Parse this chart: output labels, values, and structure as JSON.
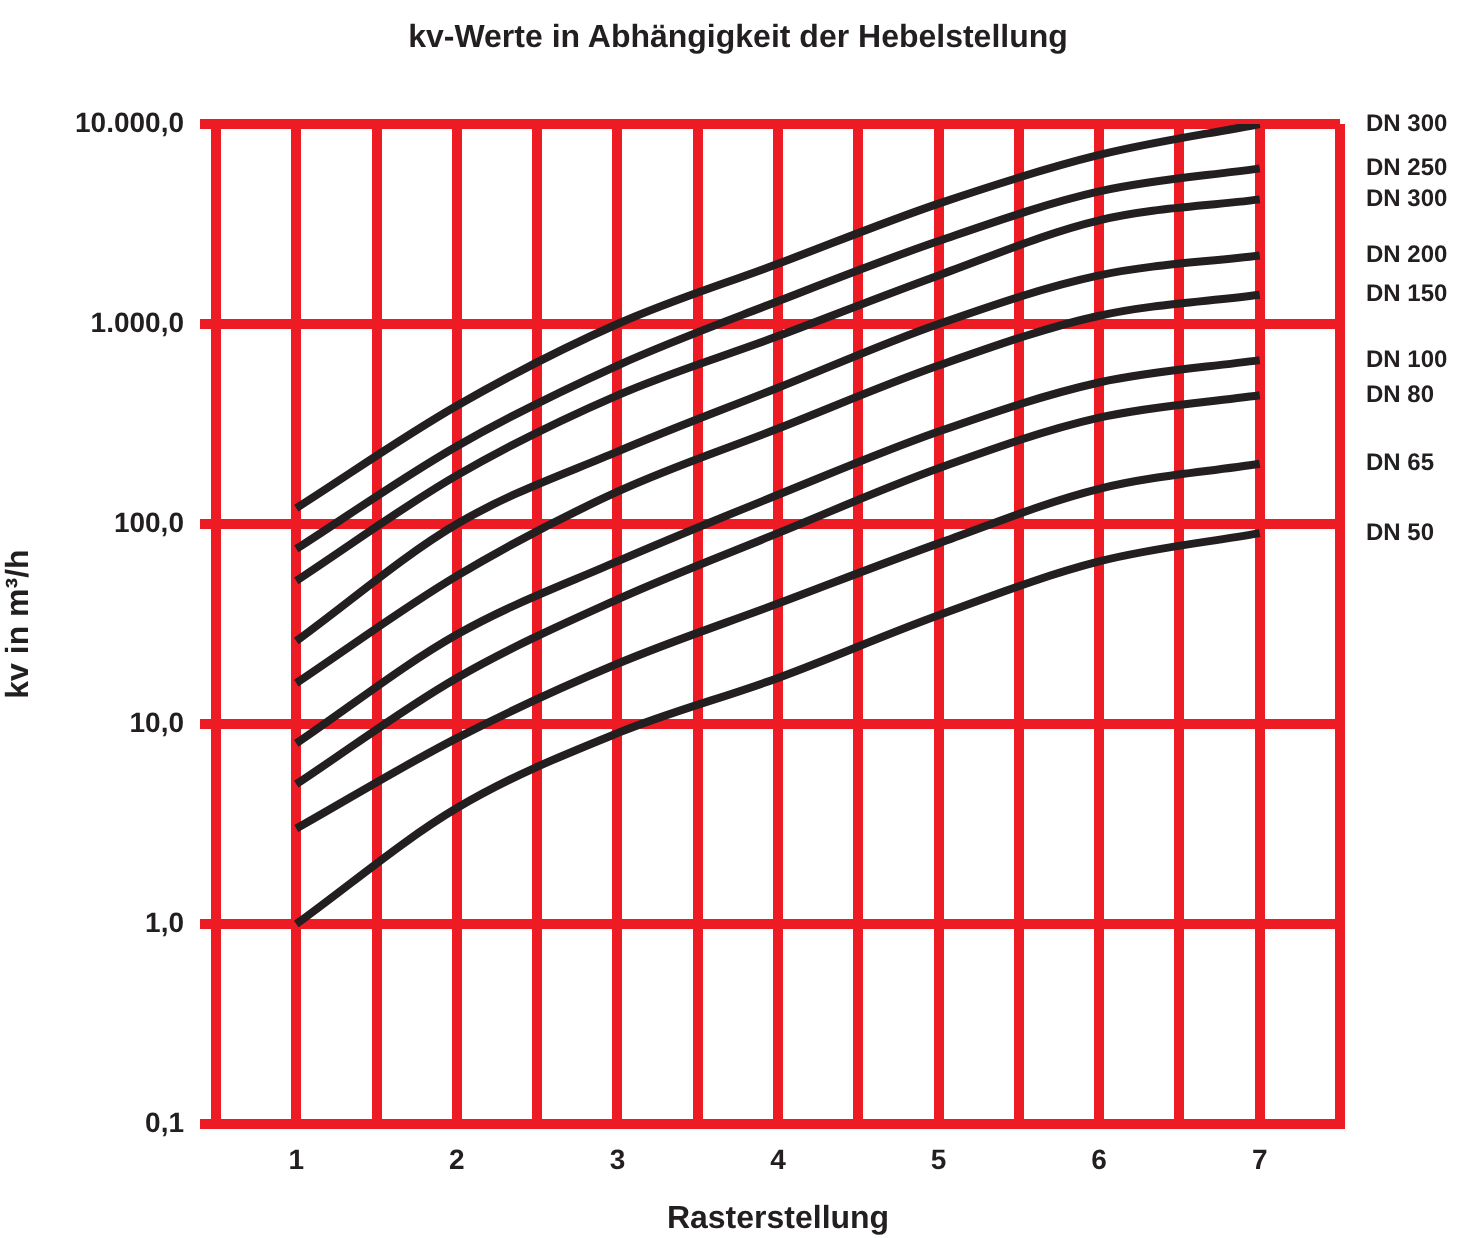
{
  "chart_data": {
    "type": "line",
    "title": "kv-Werte in Abhängigkeit der Hebelstellung",
    "xlabel": "Rasterstellung",
    "ylabel": "kv in m³/h",
    "x": [
      1,
      2,
      3,
      4,
      5,
      6,
      7
    ],
    "series": [
      {
        "name": "DN 300",
        "color": "#231f20",
        "values": [
          120,
          390,
          1000,
          2000,
          4000,
          7000,
          10000
        ]
      },
      {
        "name": "DN 250",
        "color": "#231f20",
        "values": [
          75,
          245,
          620,
          1300,
          2600,
          4600,
          6000
        ]
      },
      {
        "name": "DN 300",
        "color": "#231f20",
        "values": [
          52,
          175,
          440,
          870,
          1750,
          3300,
          4200
        ]
      },
      {
        "name": "DN 200",
        "color": "#231f20",
        "values": [
          26,
          100,
          230,
          480,
          1000,
          1750,
          2200
        ]
      },
      {
        "name": "DN 150",
        "color": "#231f20",
        "values": [
          16,
          55,
          145,
          300,
          620,
          1100,
          1400
        ]
      },
      {
        "name": "DN 100",
        "color": "#231f20",
        "values": [
          8,
          28,
          65,
          140,
          290,
          510,
          660
        ]
      },
      {
        "name": "DN 80",
        "color": "#231f20",
        "values": [
          5,
          17,
          42,
          90,
          190,
          340,
          440
        ]
      },
      {
        "name": "DN 65",
        "color": "#231f20",
        "values": [
          3,
          8.5,
          20,
          40,
          80,
          150,
          200
        ]
      },
      {
        "name": "DN 50",
        "color": "#231f20",
        "values": [
          1,
          3.8,
          9,
          17,
          35,
          65,
          90
        ]
      }
    ],
    "xlim": [
      0.5,
      7.5
    ],
    "xticks": [
      {
        "value": 0.5,
        "label": null
      },
      1,
      {
        "value": 1.5,
        "label": null
      },
      2,
      {
        "value": 2.5,
        "label": null
      },
      3,
      {
        "value": 3.5,
        "label": null
      },
      4,
      {
        "value": 4.5,
        "label": null
      },
      5,
      {
        "value": 5.5,
        "label": null
      },
      6,
      {
        "value": 6.5,
        "label": null
      },
      7,
      {
        "value": 7.5,
        "label": null
      }
    ],
    "ylim": [
      0.1,
      10000
    ],
    "yticks": [
      {
        "value": 0.1,
        "label": "0,1"
      },
      {
        "value": 1,
        "label": "1,0"
      },
      {
        "value": 10,
        "label": "10,0"
      },
      {
        "value": 100,
        "label": "100,0"
      },
      {
        "value": 1000,
        "label": "1.000,0"
      },
      {
        "value": 10000,
        "label": "10.000,0"
      }
    ],
    "log": "y",
    "grid": true
  }
}
